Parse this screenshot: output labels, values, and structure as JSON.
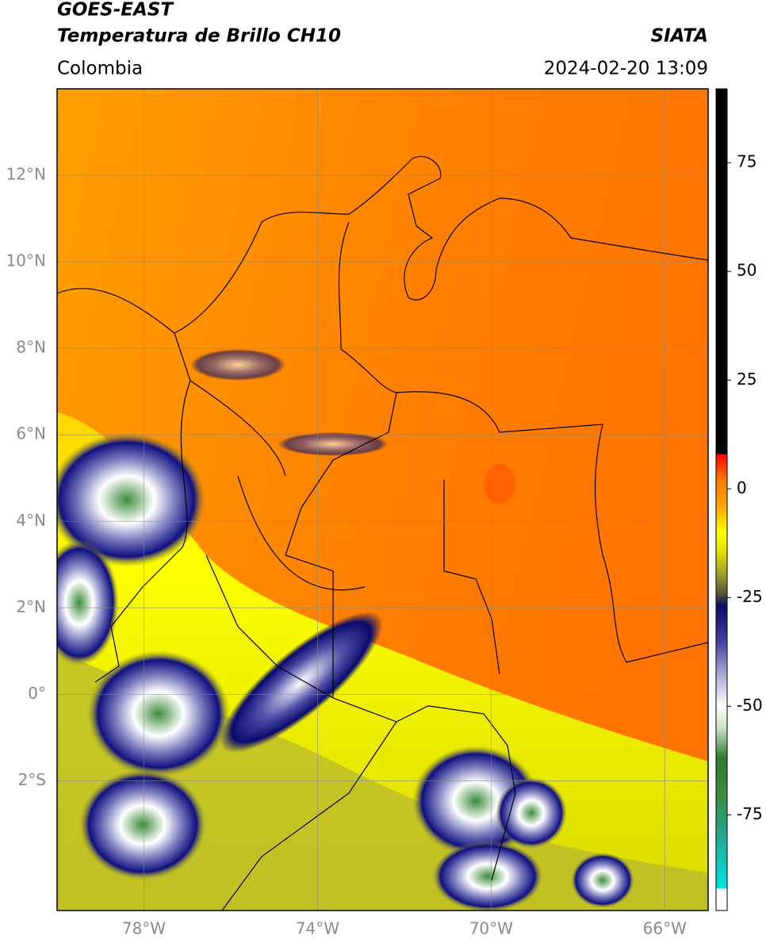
{
  "header": {
    "title": "GOES-EAST",
    "subtitle": "Temperatura de Brillo CH10",
    "source": "SIATA",
    "region": "Colombia",
    "timestamp": "2024-02-20 13:09"
  },
  "map": {
    "xlim": [
      -80,
      -65
    ],
    "ylim": [
      -5,
      14
    ],
    "xticks": [
      {
        "value": -78,
        "label": "78°W"
      },
      {
        "value": -74,
        "label": "74°W"
      },
      {
        "value": -70,
        "label": "70°W"
      },
      {
        "value": -66,
        "label": "66°W"
      }
    ],
    "yticks": [
      {
        "value": 12,
        "label": "12°N"
      },
      {
        "value": 10,
        "label": "10°N"
      },
      {
        "value": 8,
        "label": "8°N"
      },
      {
        "value": 6,
        "label": "6°N"
      },
      {
        "value": 4,
        "label": "4°N"
      },
      {
        "value": 2,
        "label": "2°N"
      },
      {
        "value": 0,
        "label": "0°"
      },
      {
        "value": -2,
        "label": "2°S"
      }
    ],
    "grid": true
  },
  "colorbar": {
    "lim": [
      -97,
      92
    ],
    "ticks": [
      75,
      50,
      25,
      0,
      -25,
      -50,
      -75
    ],
    "colormap": [
      {
        "value": -97,
        "color": "#ffffff"
      },
      {
        "value": -92,
        "color": "#ffffff"
      },
      {
        "value": -92,
        "color": "#00e5e5"
      },
      {
        "value": -80,
        "color": "#1fa98f"
      },
      {
        "value": -70,
        "color": "#3c8c3c"
      },
      {
        "value": -62,
        "color": "#2e7a2e"
      },
      {
        "value": -55,
        "color": "#c9e2c9"
      },
      {
        "value": -50,
        "color": "#ffffff"
      },
      {
        "value": -42,
        "color": "#a0a0d0"
      },
      {
        "value": -35,
        "color": "#4040a0"
      },
      {
        "value": -27,
        "color": "#0a0a6e"
      },
      {
        "value": -24,
        "color": "#555533"
      },
      {
        "value": -20,
        "color": "#9a9a30"
      },
      {
        "value": -14,
        "color": "#e6e600"
      },
      {
        "value": -10,
        "color": "#ffff00"
      },
      {
        "value": -4,
        "color": "#ffa500"
      },
      {
        "value": 2,
        "color": "#ff7a00"
      },
      {
        "value": 8,
        "color": "#ff0000"
      },
      {
        "value": 8,
        "color": "#000000"
      },
      {
        "value": 92,
        "color": "#000000"
      }
    ]
  }
}
